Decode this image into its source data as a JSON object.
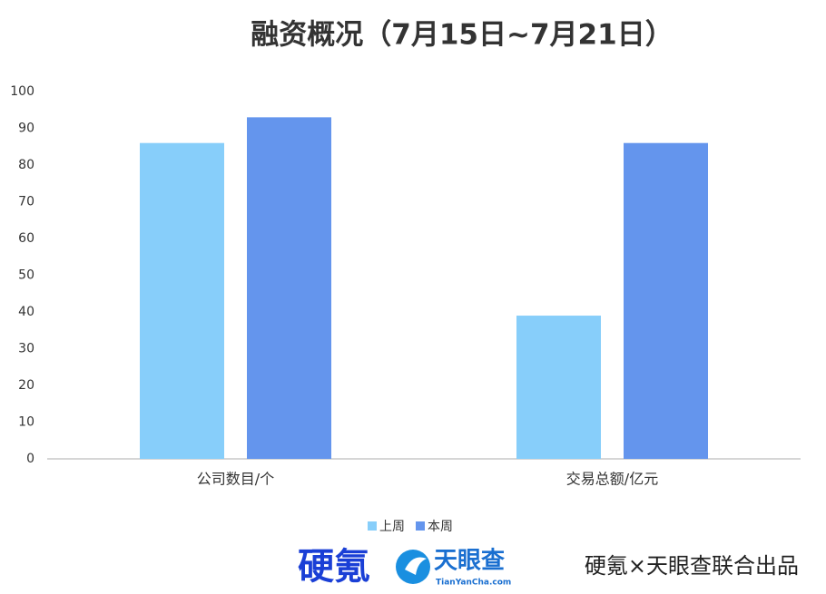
{
  "chart_data": {
    "type": "bar",
    "title": "融资概况（7月15日~7月21日）",
    "categories": [
      "公司数目/个",
      "交易总额/亿元"
    ],
    "series": [
      {
        "name": "上周",
        "color": "#87cefa",
        "values": [
          86,
          39
        ]
      },
      {
        "name": "本周",
        "color": "#6495ed",
        "values": [
          93,
          86
        ]
      }
    ],
    "ylim": [
      0,
      100
    ],
    "yticks": [
      0,
      10,
      20,
      30,
      40,
      50,
      60,
      70,
      80,
      90,
      100
    ],
    "grid": false,
    "legend": "bottom"
  },
  "footer": {
    "logo1": "硬氪",
    "logo2": "天眼查",
    "logo2_url": "TianYanCha.com",
    "credit": "硬氪×天眼查联合出品"
  }
}
